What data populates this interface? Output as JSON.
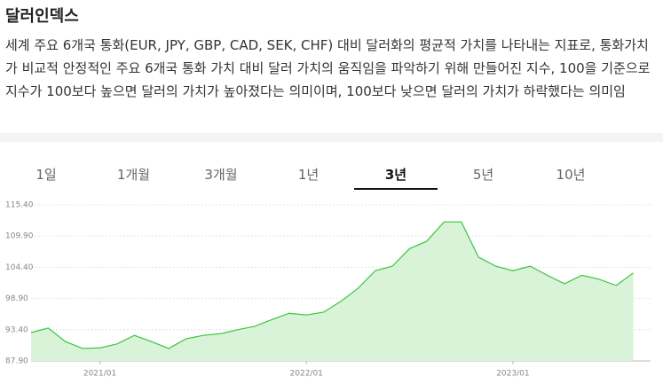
{
  "header": {
    "title": "달러인덱스"
  },
  "description": "세계 주요 6개국 통화(EUR, JPY, GBP, CAD, SEK, CHF) 대비 달러화의 평균적 가치를 나타내는 지표로, 통화가치가 비교적 안정적인 주요 6개국 통화 가치 대비 달러 가치의 움직임을 파악하기 위해 만들어진 지수, 100을 기준으로 지수가 100보다 높으면 달러의 가치가 높아졌다는 의미이며, 100보다 낮으면 달러의 가치가 하락했다는 의미임",
  "tabs": [
    "1일",
    "1개월",
    "3개월",
    "1년",
    "3년",
    "5년",
    "10년"
  ],
  "active_tab": 4,
  "chart_data": {
    "type": "area",
    "x": [
      "2020/09",
      "2020/10",
      "2020/11",
      "2020/12",
      "2021/01",
      "2021/02",
      "2021/03",
      "2021/04",
      "2021/05",
      "2021/06",
      "2021/07",
      "2021/08",
      "2021/09",
      "2021/10",
      "2021/11",
      "2021/12",
      "2022/01",
      "2022/02",
      "2022/03",
      "2022/04",
      "2022/05",
      "2022/06",
      "2022/07",
      "2022/08",
      "2022/09",
      "2022/10",
      "2022/11",
      "2022/12",
      "2023/01",
      "2023/02",
      "2023/03",
      "2023/04",
      "2023/05",
      "2023/06",
      "2023/07",
      "2023/08"
    ],
    "values": [
      92.9,
      93.7,
      91.3,
      90.1,
      90.2,
      90.9,
      92.4,
      91.3,
      90.1,
      91.8,
      92.4,
      92.7,
      93.4,
      94.0,
      95.2,
      96.3,
      96.0,
      96.5,
      98.4,
      100.7,
      103.8,
      104.6,
      107.7,
      109.0,
      112.4,
      112.4,
      106.2,
      104.6,
      103.8,
      104.6,
      103.0,
      101.5,
      103.0,
      102.3,
      101.2,
      103.4
    ],
    "color": "#3cc43c",
    "xlim": [
      "2020/09",
      "2023/09"
    ],
    "xticks": [
      "2021/01",
      "2022/01",
      "2023/01"
    ],
    "ylim": [
      87.9,
      115.4
    ],
    "yticks": [
      {
        "value": 87.9,
        "label": "87.90"
      },
      {
        "value": 93.4,
        "label": "93.40"
      },
      {
        "value": 98.9,
        "label": "98.90"
      },
      {
        "value": 104.4,
        "label": "104.40"
      },
      {
        "value": 109.9,
        "label": "109.90"
      },
      {
        "value": 115.4,
        "label": "115.40"
      }
    ],
    "grid": true
  }
}
